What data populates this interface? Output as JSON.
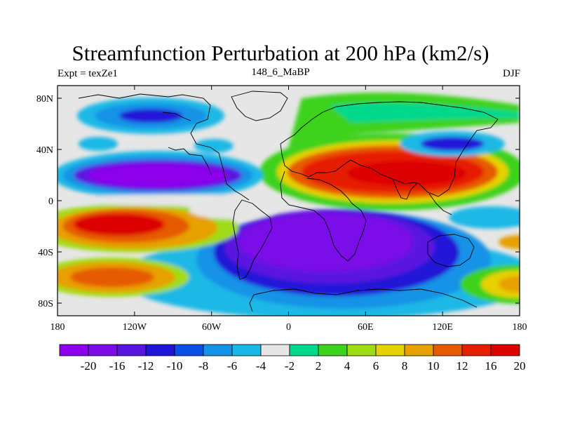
{
  "title": "Streamfunction Perturbation at 200 hPa (km2/s)",
  "left_string": "Expt = texZe1",
  "center_string": "148_6_MaBP",
  "right_string": "DJF",
  "x_ticks": [
    "180",
    "120W",
    "60W",
    "0",
    "60E",
    "120E",
    "180"
  ],
  "y_ticks": [
    "80N",
    "40N",
    "0",
    "40S",
    "80S"
  ],
  "colorbar": {
    "colors": [
      "#8c00ec",
      "#7a0ce8",
      "#5a14e0",
      "#2014d8",
      "#0a50e4",
      "#1492e6",
      "#1ab8e6",
      "#e6e6e6",
      "#00d88c",
      "#3cd21e",
      "#a0dc14",
      "#e6d200",
      "#e6a000",
      "#e65a00",
      "#e61e00",
      "#dc0000"
    ],
    "labels": [
      "-20",
      "-16",
      "-12",
      "-10",
      "-8",
      "-6",
      "-4",
      "-2",
      "2",
      "4",
      "6",
      "8",
      "10",
      "12",
      "16",
      "20"
    ]
  },
  "map_background": "#e6e6e6"
}
